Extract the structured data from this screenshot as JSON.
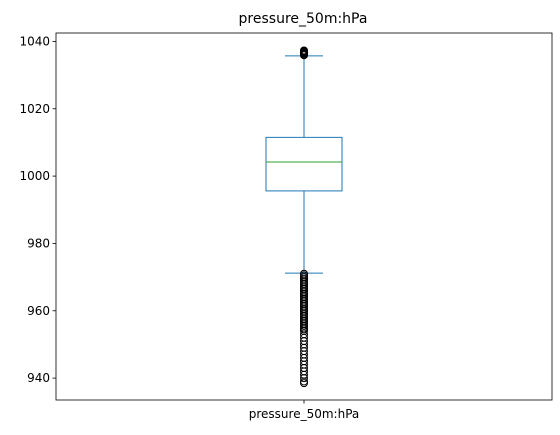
{
  "chart_data": {
    "type": "box",
    "title": "pressure_50m:hPa",
    "categories": [
      "pressure_50m:hPa"
    ],
    "xlabel": "",
    "ylabel": "",
    "ylim": [
      933.5,
      1042.5
    ],
    "yticks": [
      940,
      960,
      980,
      1000,
      1020,
      1040
    ],
    "grid": false,
    "box": {
      "whisker_low": 971.2,
      "q1": 995.6,
      "median": 1004.2,
      "q3": 1011.5,
      "whisker_high": 1035.7
    },
    "outliers_high": [
      1035.9,
      1036.1,
      1036.4,
      1036.6,
      1036.9,
      1037.1,
      1037.3
    ],
    "outliers_low": [
      971.0,
      970.5,
      970.0,
      969.5,
      969.0,
      968.5,
      968.0,
      967.5,
      967.0,
      966.5,
      966.0,
      965.5,
      965.0,
      964.5,
      964.0,
      963.5,
      963.0,
      962.5,
      962.0,
      961.5,
      961.0,
      960.5,
      960.0,
      959.5,
      959.0,
      958.5,
      958.0,
      957.5,
      957.0,
      956.5,
      956.0,
      955.5,
      955.0,
      954.5,
      954.0,
      953.0,
      952.0,
      951.0,
      950.0,
      949.0,
      948.0,
      947.0,
      946.0,
      945.0,
      944.0,
      943.0,
      942.0,
      941.0,
      940.0,
      939.0,
      938.5
    ],
    "colors": {
      "box": "#1f77b4",
      "median": "#2ca02c",
      "outlier": "#000000",
      "axes": "#000000"
    }
  }
}
